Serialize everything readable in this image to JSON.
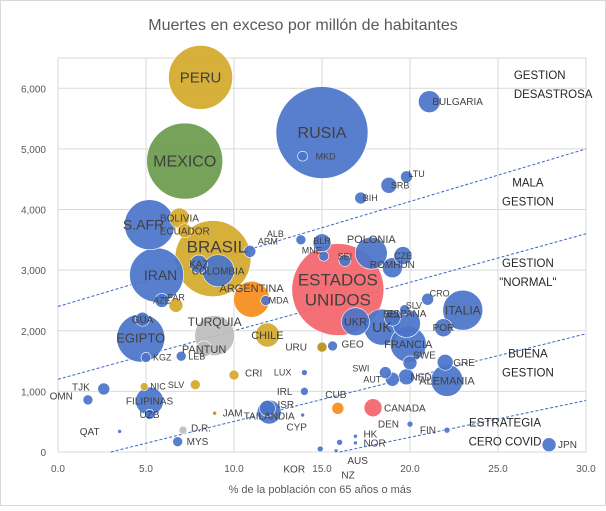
{
  "chart_data": {
    "type": "scatter",
    "title": "Muertes en exceso por millón de habitantes",
    "xlabel": "% de la población con 65 años o más",
    "ylabel": "",
    "xlim": [
      0,
      30
    ],
    "ylim": [
      0,
      6500
    ],
    "x_ticks": [
      0,
      5,
      10,
      15,
      20,
      25,
      30
    ],
    "y_ticks": [
      0,
      1000,
      2000,
      3000,
      4000,
      5000,
      6000
    ],
    "x_tick_labels": [
      "0.0",
      "5.0",
      "10.0",
      "15.0",
      "20.0",
      "25.0",
      "30.0"
    ],
    "y_tick_labels": [
      "0",
      "1,000",
      "2,000",
      "3,000",
      "4,000",
      "5,000",
      "6,000"
    ],
    "colors": {
      "blue": "#4a74c9",
      "gold": "#d4a82a",
      "green": "#6a9a4c",
      "red": "#f4646a",
      "grey": "#bdbdbd",
      "orange": "#f48c1a",
      "olive": "#b59216"
    },
    "points": [
      {
        "label": "PERU",
        "x": 8.1,
        "y": 6180,
        "r": 32,
        "color": "gold",
        "fs": 15,
        "dx": 0,
        "dy": 0,
        "anchor": "middle"
      },
      {
        "label": "MEXICO",
        "x": 7.2,
        "y": 4800,
        "r": 38,
        "color": "green",
        "fs": 16,
        "dx": 0,
        "dy": 0,
        "anchor": "middle"
      },
      {
        "label": "RUSIA",
        "x": 15.0,
        "y": 5270,
        "r": 46,
        "color": "blue",
        "fs": 16,
        "dx": 0,
        "dy": 0,
        "anchor": "middle"
      },
      {
        "label": "MKD",
        "x": 13.9,
        "y": 4880,
        "r": 5,
        "color": "blue",
        "fs": 9,
        "dx": 6,
        "dy": 0,
        "anchor": "start"
      },
      {
        "label": "BULGARIA",
        "x": 21.1,
        "y": 5780,
        "r": 11,
        "color": "blue",
        "fs": 10,
        "dx": -10,
        "dy": 0,
        "anchor": "start"
      },
      {
        "label": "LTU",
        "x": 19.8,
        "y": 4540,
        "r": 6,
        "color": "blue",
        "fs": 9,
        "dx": -6,
        "dy": -3,
        "anchor": "start"
      },
      {
        "label": "SRB",
        "x": 18.8,
        "y": 4400,
        "r": 8,
        "color": "blue",
        "fs": 9,
        "dx": -8,
        "dy": 0,
        "anchor": "start"
      },
      {
        "label": "BIH",
        "x": 17.2,
        "y": 4190,
        "r": 6,
        "color": "blue",
        "fs": 9,
        "dx": -6,
        "dy": 0,
        "anchor": "start"
      },
      {
        "label": "S.AFR",
        "x": 5.2,
        "y": 3750,
        "r": 25,
        "color": "blue",
        "fs": 14,
        "dx": -6,
        "dy": 0,
        "anchor": "middle"
      },
      {
        "label": "BOLIVIA",
        "x": 6.9,
        "y": 3860,
        "r": 10,
        "color": "gold",
        "fs": 10,
        "dx": 0,
        "dy": 0,
        "anchor": "middle"
      },
      {
        "label": "ECUADOR",
        "x": 7.2,
        "y": 3650,
        "r": 7,
        "color": "gold",
        "fs": 10,
        "dx": 0,
        "dy": 0,
        "anchor": "middle"
      },
      {
        "label": "BRASIL",
        "x": 8.8,
        "y": 3190,
        "r": 38,
        "color": "gold",
        "fs": 17,
        "dx": 4,
        "dy": -12,
        "anchor": "middle"
      },
      {
        "label": "ARM",
        "x": 10.9,
        "y": 3310,
        "r": 6,
        "color": "blue",
        "fs": 9,
        "dx": 0,
        "dy": -10,
        "anchor": "start"
      },
      {
        "label": "IRAN",
        "x": 5.6,
        "y": 2920,
        "r": 27,
        "color": "blue",
        "fs": 14,
        "dx": 4,
        "dy": 0,
        "anchor": "middle"
      },
      {
        "label": "KAZ",
        "x": 8.0,
        "y": 3100,
        "r": 9,
        "color": "blue",
        "fs": 10,
        "dx": 0,
        "dy": 0,
        "anchor": "middle"
      },
      {
        "label": "COLOMBIA",
        "x": 9.1,
        "y": 2990,
        "r": 16,
        "color": "blue",
        "fs": 10,
        "dx": 0,
        "dy": 0,
        "anchor": "middle"
      },
      {
        "label": "AZE",
        "x": 5.9,
        "y": 2500,
        "r": 7,
        "color": "blue",
        "fs": 9,
        "dx": 0,
        "dy": 0,
        "anchor": "middle"
      },
      {
        "label": "PAR",
        "x": 6.7,
        "y": 2420,
        "r": 7,
        "color": "gold",
        "fs": 9,
        "dx": 0,
        "dy": -8,
        "anchor": "middle"
      },
      {
        "label": "ARGENTINA",
        "x": 11.0,
        "y": 2520,
        "r": 18,
        "color": "orange",
        "fs": 11,
        "dx": 0,
        "dy": -11,
        "anchor": "middle"
      },
      {
        "label": "MDA",
        "x": 11.8,
        "y": 2500,
        "r": 5,
        "color": "blue",
        "fs": 9,
        "dx": -4,
        "dy": 0,
        "anchor": "start"
      },
      {
        "label": "GUA",
        "x": 4.8,
        "y": 2190,
        "r": 7,
        "color": "blue",
        "fs": 10,
        "dx": 0,
        "dy": 0,
        "anchor": "middle"
      },
      {
        "label": "EGIPTO",
        "x": 4.7,
        "y": 1880,
        "r": 24,
        "color": "blue",
        "fs": 13,
        "dx": 0,
        "dy": 0,
        "anchor": "middle"
      },
      {
        "label": "TURQUIA",
        "x": 8.9,
        "y": 1920,
        "r": 20,
        "color": "grey",
        "fs": 12,
        "dx": 0,
        "dy": -14,
        "anchor": "middle"
      },
      {
        "label": "PANTUN",
        "x": 8.3,
        "y": 1700,
        "r": 8,
        "color": "grey",
        "fs": 11,
        "dx": 0,
        "dy": 0,
        "anchor": "middle"
      },
      {
        "label": "CHILE",
        "x": 11.9,
        "y": 1930,
        "r": 12,
        "color": "gold",
        "fs": 11,
        "dx": 0,
        "dy": 0,
        "anchor": "middle"
      },
      {
        "label": "KGZ",
        "x": 5.0,
        "y": 1560,
        "r": 5,
        "color": "blue",
        "fs": 9,
        "dx": 0,
        "dy": 0,
        "anchor": "start"
      },
      {
        "label": "LEB",
        "x": 7.0,
        "y": 1580,
        "r": 5,
        "color": "blue",
        "fs": 9,
        "dx": 0,
        "dy": 0,
        "anchor": "start"
      },
      {
        "label": "ALB",
        "x": 13.8,
        "y": 3500,
        "r": 5,
        "color": "blue",
        "fs": 9,
        "dx": -10,
        "dy": -6,
        "anchor": "end"
      },
      {
        "label": "BLR",
        "x": 15.0,
        "y": 3450,
        "r": 9,
        "color": "blue",
        "fs": 9,
        "dx": 0,
        "dy": -2,
        "anchor": "middle"
      },
      {
        "label": "MNE",
        "x": 15.1,
        "y": 3230,
        "r": 5,
        "color": "blue",
        "fs": 9,
        "dx": -12,
        "dy": -6,
        "anchor": "middle"
      },
      {
        "label": "ESTADOS UNIDOS",
        "x": 15.9,
        "y": 2680,
        "r": 46,
        "color": "red",
        "fs": 17,
        "dx": 0,
        "dy": 0,
        "anchor": "middle"
      },
      {
        "label": "SEI",
        "x": 16.3,
        "y": 3160,
        "r": 6,
        "color": "blue",
        "fs": 9,
        "dx": 0,
        "dy": -4,
        "anchor": "middle"
      },
      {
        "label": "POLONIA",
        "x": 17.8,
        "y": 3280,
        "r": 16,
        "color": "blue",
        "fs": 11,
        "dx": 0,
        "dy": -14,
        "anchor": "middle"
      },
      {
        "label": "CZE",
        "x": 19.6,
        "y": 3240,
        "r": 9,
        "color": "blue",
        "fs": 9,
        "dx": 0,
        "dy": 0,
        "anchor": "middle"
      },
      {
        "label": "ROMHUN",
        "x": 19.0,
        "y": 3040,
        "r": 10,
        "color": "blue",
        "fs": 10,
        "dx": 0,
        "dy": -3,
        "anchor": "middle"
      },
      {
        "label": "CRO",
        "x": 21.0,
        "y": 2520,
        "r": 6,
        "color": "blue",
        "fs": 9,
        "dx": -6,
        "dy": -6,
        "anchor": "start"
      },
      {
        "label": "SLV",
        "x": 19.7,
        "y": 2350,
        "r": 5,
        "color": "blue",
        "fs": 9,
        "dx": -6,
        "dy": -4,
        "anchor": "start"
      },
      {
        "label": "ITALIA",
        "x": 23.0,
        "y": 2340,
        "r": 20,
        "color": "blue",
        "fs": 12,
        "dx": 0,
        "dy": 0,
        "anchor": "middle"
      },
      {
        "label": "UKR",
        "x": 16.9,
        "y": 2150,
        "r": 14,
        "color": "blue",
        "fs": 11,
        "dx": 0,
        "dy": 0,
        "anchor": "middle"
      },
      {
        "label": "UK",
        "x": 18.4,
        "y": 2060,
        "r": 18,
        "color": "blue",
        "fs": 14,
        "dx": 0,
        "dy": 0,
        "anchor": "middle"
      },
      {
        "label": "BEL",
        "x": 19.0,
        "y": 2210,
        "r": 8,
        "color": "blue",
        "fs": 10,
        "dx": 0,
        "dy": -4,
        "anchor": "middle"
      },
      {
        "label": "ESPAÑA",
        "x": 19.8,
        "y": 2120,
        "r": 14,
        "color": "blue",
        "fs": 10,
        "dx": 0,
        "dy": -10,
        "anchor": "middle"
      },
      {
        "label": "POR",
        "x": 21.9,
        "y": 2050,
        "r": 9,
        "color": "blue",
        "fs": 10,
        "dx": 0,
        "dy": 0,
        "anchor": "middle"
      },
      {
        "label": "FRANCIA",
        "x": 19.9,
        "y": 1780,
        "r": 18,
        "color": "blue",
        "fs": 11,
        "dx": 0,
        "dy": 0,
        "anchor": "middle"
      },
      {
        "label": "URU",
        "x": 15.0,
        "y": 1730,
        "r": 5,
        "color": "olive",
        "fs": 10,
        "dx": -8,
        "dy": 0,
        "anchor": "end"
      },
      {
        "label": "GEO",
        "x": 15.6,
        "y": 1750,
        "r": 5,
        "color": "blue",
        "fs": 10,
        "dx": 2,
        "dy": -2,
        "anchor": "start"
      },
      {
        "label": "GRE",
        "x": 22.0,
        "y": 1480,
        "r": 8,
        "color": "blue",
        "fs": 10,
        "dx": -2,
        "dy": 0,
        "anchor": "start"
      },
      {
        "label": "SWE",
        "x": 20.0,
        "y": 1470,
        "r": 7,
        "color": "blue",
        "fs": 10,
        "dx": -6,
        "dy": -8,
        "anchor": "start"
      },
      {
        "label": "SWI",
        "x": 18.6,
        "y": 1310,
        "r": 6,
        "color": "blue",
        "fs": 9,
        "dx": -8,
        "dy": -4,
        "anchor": "end"
      },
      {
        "label": "AUT",
        "x": 19.0,
        "y": 1200,
        "r": 7,
        "color": "blue",
        "fs": 9,
        "dx": -2,
        "dy": 0,
        "anchor": "end"
      },
      {
        "label": "NED",
        "x": 19.8,
        "y": 1240,
        "r": 8,
        "color": "blue",
        "fs": 10,
        "dx": -6,
        "dy": 0,
        "anchor": "start"
      },
      {
        "label": "ALEMANIA",
        "x": 22.1,
        "y": 1180,
        "r": 16,
        "color": "blue",
        "fs": 11,
        "dx": 0,
        "dy": 0,
        "anchor": "middle"
      },
      {
        "label": "LUX",
        "x": 14.0,
        "y": 1310,
        "r": 3,
        "color": "blue",
        "fs": 9,
        "dx": -8,
        "dy": 0,
        "anchor": "end"
      },
      {
        "label": "CRI",
        "x": 10.0,
        "y": 1270,
        "r": 5,
        "color": "gold",
        "fs": 10,
        "dx": 4,
        "dy": -2,
        "anchor": "start"
      },
      {
        "label": "SLV",
        "x": 7.8,
        "y": 1110,
        "r": 5,
        "color": "gold",
        "fs": 9,
        "dx": -4,
        "dy": 0,
        "anchor": "end"
      },
      {
        "label": "IRL",
        "x": 14.0,
        "y": 1000,
        "r": 4,
        "color": "blue",
        "fs": 10,
        "dx": -6,
        "dy": 0,
        "anchor": "end"
      },
      {
        "label": "ISR",
        "x": 11.9,
        "y": 720,
        "r": 8,
        "color": "blue",
        "fs": 10,
        "dx": 0,
        "dy": -4,
        "anchor": "start"
      },
      {
        "label": "TAILANDIA",
        "x": 12.0,
        "y": 660,
        "r": 12,
        "color": "blue",
        "fs": 10,
        "dx": 0,
        "dy": 4,
        "anchor": "middle"
      },
      {
        "label": "CUB",
        "x": 15.9,
        "y": 720,
        "r": 6,
        "color": "orange",
        "fs": 10,
        "dx": -2,
        "dy": -14,
        "anchor": "middle"
      },
      {
        "label": "CANADA",
        "x": 17.9,
        "y": 730,
        "r": 9,
        "color": "red",
        "fs": 10,
        "dx": 0,
        "dy": 0,
        "anchor": "start"
      },
      {
        "label": "CYP",
        "x": 13.9,
        "y": 610,
        "r": 2,
        "color": "blue",
        "fs": 10,
        "dx": -6,
        "dy": 12,
        "anchor": "middle"
      },
      {
        "label": "JAM",
        "x": 8.9,
        "y": 640,
        "r": 2,
        "color": "olive",
        "fs": 10,
        "dx": 4,
        "dy": 0,
        "anchor": "start"
      },
      {
        "label": "D.R.",
        "x": 7.1,
        "y": 360,
        "r": 4,
        "color": "grey",
        "fs": 10,
        "dx": 2,
        "dy": -2,
        "anchor": "start"
      },
      {
        "label": "MYS",
        "x": 6.8,
        "y": 170,
        "r": 5,
        "color": "blue",
        "fs": 10,
        "dx": 2,
        "dy": 0,
        "anchor": "start"
      },
      {
        "label": "OMN",
        "x": 1.7,
        "y": 860,
        "r": 5,
        "color": "blue",
        "fs": 10,
        "dx": -8,
        "dy": -4,
        "anchor": "end"
      },
      {
        "label": "TJK",
        "x": 2.6,
        "y": 1040,
        "r": 6,
        "color": "blue",
        "fs": 10,
        "dx": -6,
        "dy": -2,
        "anchor": "end"
      },
      {
        "label": "NIC",
        "x": 4.9,
        "y": 1080,
        "r": 4,
        "color": "gold",
        "fs": 9,
        "dx": 0,
        "dy": 0,
        "anchor": "start"
      },
      {
        "label": "FILIPINAS",
        "x": 5.2,
        "y": 840,
        "r": 14,
        "color": "blue",
        "fs": 10,
        "dx": 0,
        "dy": 0,
        "anchor": "middle"
      },
      {
        "label": "UZB",
        "x": 5.2,
        "y": 620,
        "r": 5,
        "color": "blue",
        "fs": 10,
        "dx": 0,
        "dy": 0,
        "anchor": "middle"
      },
      {
        "label": "QAT",
        "x": 3.5,
        "y": 340,
        "r": 2,
        "color": "blue",
        "fs": 10,
        "dx": -16,
        "dy": 0,
        "anchor": "end"
      },
      {
        "label": "DEN",
        "x": 20.0,
        "y": 460,
        "r": 3,
        "color": "blue",
        "fs": 10,
        "dx": -6,
        "dy": 0,
        "anchor": "end"
      },
      {
        "label": "FIN",
        "x": 22.1,
        "y": 360,
        "r": 3,
        "color": "blue",
        "fs": 10,
        "dx": -6,
        "dy": 0,
        "anchor": "end"
      },
      {
        "label": "HK",
        "x": 16.9,
        "y": 260,
        "r": 2,
        "color": "blue",
        "fs": 10,
        "dx": 4,
        "dy": -2,
        "anchor": "start"
      },
      {
        "label": "NOR",
        "x": 16.9,
        "y": 150,
        "r": 2,
        "color": "blue",
        "fs": 10,
        "dx": 4,
        "dy": 0,
        "anchor": "start"
      },
      {
        "label": "KOR",
        "x": 14.9,
        "y": 50,
        "r": 3,
        "color": "blue",
        "fs": 10,
        "dx": -26,
        "dy": 20,
        "anchor": "middle"
      },
      {
        "label": "NZ",
        "x": 15.8,
        "y": 20,
        "r": 2,
        "color": "blue",
        "fs": 10,
        "dx": 12,
        "dy": 24,
        "anchor": "middle"
      },
      {
        "label": "AUS",
        "x": 16.0,
        "y": 160,
        "r": 3,
        "color": "blue",
        "fs": 10,
        "dx": 18,
        "dy": 18,
        "anchor": "middle"
      },
      {
        "label": "JPN",
        "x": 27.9,
        "y": 120,
        "r": 7,
        "color": "blue",
        "fs": 10,
        "dx": 0,
        "dy": 0,
        "anchor": "start"
      }
    ],
    "reference_lines": [
      {
        "name": "line-1",
        "x1": 0,
        "y1": 2400,
        "x2": 30,
        "y2": 5000
      },
      {
        "name": "line-2",
        "x1": 0,
        "y1": 1200,
        "x2": 30,
        "y2": 3600
      },
      {
        "name": "line-3",
        "x1": 3,
        "y1": 0,
        "x2": 30,
        "y2": 1950
      },
      {
        "name": "line-4",
        "x1": 16,
        "y1": 0,
        "x2": 30,
        "y2": 850
      }
    ],
    "annotations": [
      {
        "name": "annotation-gestion-desastrosa",
        "lines": [
          "GESTION",
          "DESASTROSA"
        ],
        "x": 25.9,
        "y": 6150,
        "anchor": "start"
      },
      {
        "name": "annotation-mala-gestion",
        "lines": [
          "MALA",
          "GESTION"
        ],
        "x": 26.7,
        "y": 4380,
        "anchor": "middle"
      },
      {
        "name": "annotation-gestion-normal",
        "lines": [
          "GESTION",
          "\"NORMAL\""
        ],
        "x": 26.7,
        "y": 3050,
        "anchor": "middle"
      },
      {
        "name": "annotation-buena-gestion",
        "lines": [
          "BUENA",
          "GESTION"
        ],
        "x": 26.7,
        "y": 1560,
        "anchor": "middle"
      },
      {
        "name": "annotation-estrategia-cero-covid",
        "lines": [
          "ESTRATEGIA",
          "CERO COVID"
        ],
        "x": 25.4,
        "y": 420,
        "anchor": "middle"
      }
    ]
  }
}
